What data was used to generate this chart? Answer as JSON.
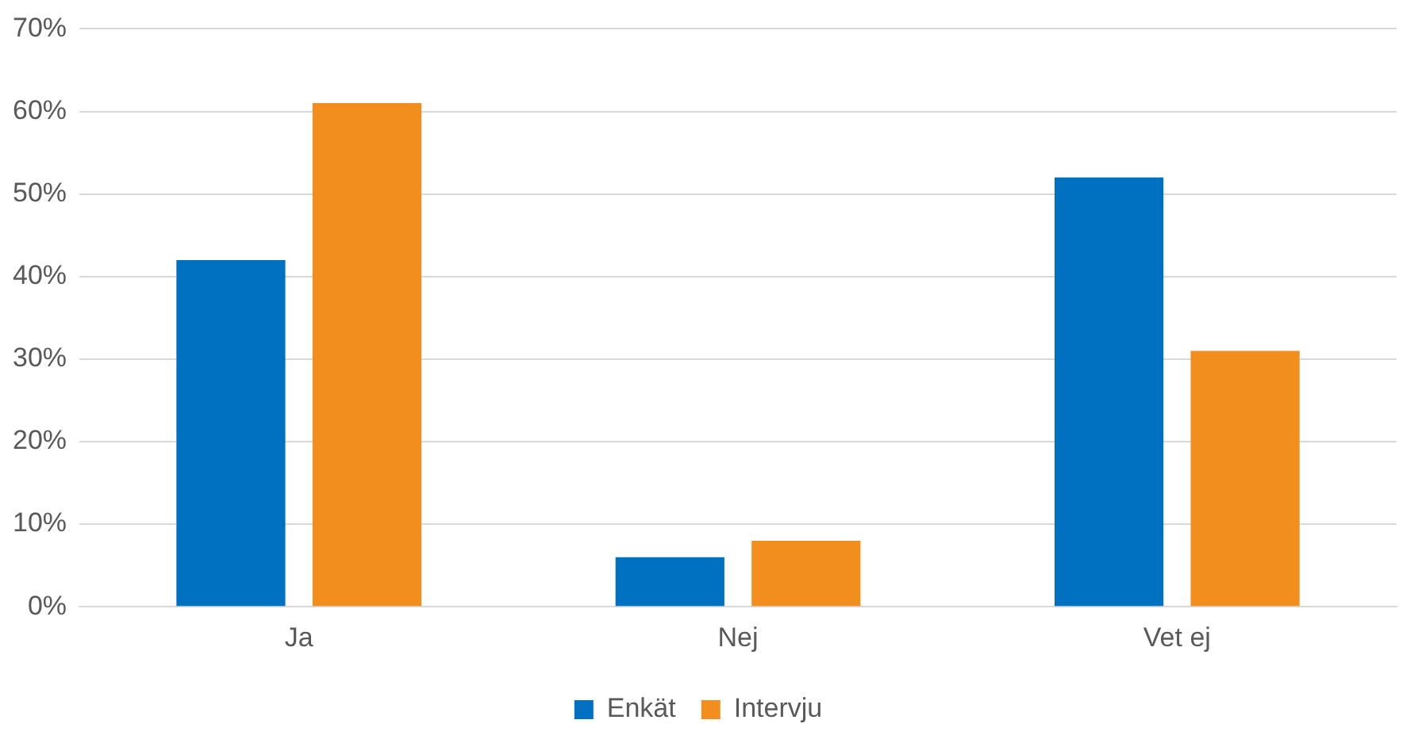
{
  "chart_data": {
    "type": "bar",
    "categories": [
      "Ja",
      "Nej",
      "Vet ej"
    ],
    "series": [
      {
        "name": "Enkät",
        "color": "#0070c0",
        "values": [
          42,
          6,
          52
        ]
      },
      {
        "name": "Intervju",
        "color": "#f28e1e",
        "values": [
          61,
          8,
          31
        ]
      }
    ],
    "ylim": [
      0,
      70
    ],
    "yticks": [
      {
        "value": 0,
        "label": "0%"
      },
      {
        "value": 10,
        "label": "10%"
      },
      {
        "value": 20,
        "label": "20%"
      },
      {
        "value": 30,
        "label": "30%"
      },
      {
        "value": 40,
        "label": "40%"
      },
      {
        "value": 50,
        "label": "50%"
      },
      {
        "value": 60,
        "label": "60%"
      },
      {
        "value": 70,
        "label": "70%"
      }
    ],
    "grid": "y",
    "legend": "bottom"
  }
}
